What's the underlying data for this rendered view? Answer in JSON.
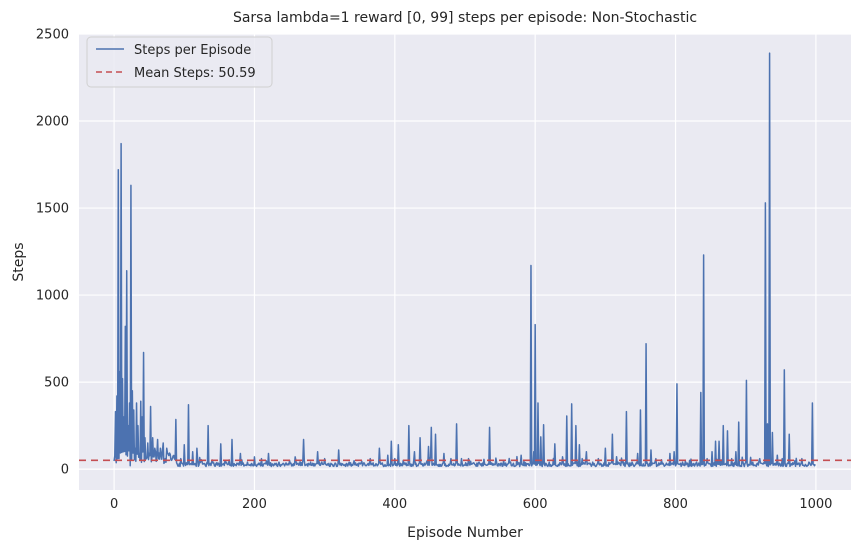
{
  "chart_data": {
    "type": "line",
    "title": "Sarsa lambda=1 reward [0, 99] steps per episode: Non-Stochastic",
    "xlabel": "Episode Number",
    "ylabel": "Steps",
    "xlim": [
      -50,
      1050
    ],
    "ylim": [
      -120,
      2500
    ],
    "xticks": [
      0,
      200,
      400,
      600,
      800,
      1000
    ],
    "yticks": [
      0,
      500,
      1000,
      1500,
      2000,
      2500
    ],
    "x_tick_labels": [
      "0",
      "200",
      "400",
      "600",
      "800",
      "1000"
    ],
    "y_tick_labels": [
      "0",
      "500",
      "1000",
      "1500",
      "2000",
      "2500"
    ],
    "grid": true,
    "legend": {
      "placement": "top-left",
      "entries": [
        "Steps per Episode",
        "Mean Steps: 50.59"
      ]
    },
    "episodes": 1000,
    "baseline_steps": 15,
    "series": [
      {
        "name": "Steps per Episode",
        "color": "#4c72b0",
        "style": "solid",
        "peaks": [
          [
            2,
            330
          ],
          [
            4,
            420
          ],
          [
            6,
            1720
          ],
          [
            8,
            560
          ],
          [
            10,
            1870
          ],
          [
            12,
            520
          ],
          [
            14,
            300
          ],
          [
            16,
            820
          ],
          [
            18,
            1140
          ],
          [
            20,
            250
          ],
          [
            22,
            380
          ],
          [
            24,
            1630
          ],
          [
            26,
            450
          ],
          [
            28,
            340
          ],
          [
            30,
            120
          ],
          [
            32,
            380
          ],
          [
            34,
            250
          ],
          [
            36,
            90
          ],
          [
            38,
            390
          ],
          [
            40,
            300
          ],
          [
            42,
            670
          ],
          [
            44,
            180
          ],
          [
            48,
            150
          ],
          [
            52,
            360
          ],
          [
            55,
            180
          ],
          [
            58,
            120
          ],
          [
            62,
            170
          ],
          [
            66,
            120
          ],
          [
            70,
            150
          ],
          [
            75,
            120
          ],
          [
            80,
            60
          ],
          [
            88,
            285
          ],
          [
            95,
            60
          ],
          [
            100,
            140
          ],
          [
            106,
            370
          ],
          [
            112,
            100
          ],
          [
            118,
            120
          ],
          [
            125,
            50
          ],
          [
            134,
            250
          ],
          [
            140,
            40
          ],
          [
            152,
            145
          ],
          [
            160,
            40
          ],
          [
            168,
            170
          ],
          [
            180,
            90
          ],
          [
            190,
            40
          ],
          [
            200,
            70
          ],
          [
            210,
            60
          ],
          [
            220,
            90
          ],
          [
            235,
            40
          ],
          [
            250,
            50
          ],
          [
            258,
            70
          ],
          [
            270,
            170
          ],
          [
            280,
            40
          ],
          [
            290,
            100
          ],
          [
            300,
            60
          ],
          [
            320,
            110
          ],
          [
            335,
            40
          ],
          [
            350,
            30
          ],
          [
            365,
            60
          ],
          [
            378,
            120
          ],
          [
            390,
            80
          ],
          [
            395,
            160
          ],
          [
            400,
            60
          ],
          [
            405,
            140
          ],
          [
            412,
            50
          ],
          [
            420,
            250
          ],
          [
            428,
            100
          ],
          [
            436,
            180
          ],
          [
            448,
            130
          ],
          [
            452,
            240
          ],
          [
            458,
            200
          ],
          [
            470,
            90
          ],
          [
            480,
            60
          ],
          [
            488,
            260
          ],
          [
            495,
            60
          ],
          [
            505,
            60
          ],
          [
            520,
            40
          ],
          [
            535,
            240
          ],
          [
            545,
            40
          ],
          [
            555,
            50
          ],
          [
            565,
            40
          ],
          [
            580,
            80
          ],
          [
            594,
            1170
          ],
          [
            598,
            100
          ],
          [
            600,
            830
          ],
          [
            604,
            380
          ],
          [
            608,
            185
          ],
          [
            612,
            255
          ],
          [
            620,
            40
          ],
          [
            628,
            145
          ],
          [
            640,
            40
          ],
          [
            645,
            305
          ],
          [
            652,
            375
          ],
          [
            658,
            250
          ],
          [
            663,
            140
          ],
          [
            667,
            60
          ],
          [
            673,
            100
          ],
          [
            682,
            40
          ],
          [
            690,
            60
          ],
          [
            700,
            120
          ],
          [
            710,
            200
          ],
          [
            718,
            40
          ],
          [
            730,
            330
          ],
          [
            738,
            40
          ],
          [
            746,
            90
          ],
          [
            750,
            340
          ],
          [
            758,
            720
          ],
          [
            765,
            110
          ],
          [
            772,
            60
          ],
          [
            780,
            40
          ],
          [
            792,
            90
          ],
          [
            798,
            100
          ],
          [
            802,
            490
          ],
          [
            810,
            40
          ],
          [
            820,
            50
          ],
          [
            830,
            40
          ],
          [
            836,
            440
          ],
          [
            840,
            1230
          ],
          [
            845,
            60
          ],
          [
            852,
            100
          ],
          [
            857,
            160
          ],
          [
            862,
            160
          ],
          [
            868,
            250
          ],
          [
            874,
            220
          ],
          [
            880,
            60
          ],
          [
            886,
            100
          ],
          [
            890,
            270
          ],
          [
            896,
            40
          ],
          [
            901,
            510
          ],
          [
            910,
            40
          ],
          [
            920,
            60
          ],
          [
            928,
            1530
          ],
          [
            931,
            260
          ],
          [
            934,
            2390
          ],
          [
            938,
            210
          ],
          [
            945,
            80
          ],
          [
            952,
            60
          ],
          [
            955,
            570
          ],
          [
            962,
            200
          ],
          [
            970,
            40
          ],
          [
            980,
            60
          ],
          [
            990,
            40
          ],
          [
            995,
            380
          ]
        ]
      },
      {
        "name": "Mean Steps: 50.59",
        "color": "#c44e52",
        "style": "dashed",
        "value": 50.59
      }
    ]
  }
}
